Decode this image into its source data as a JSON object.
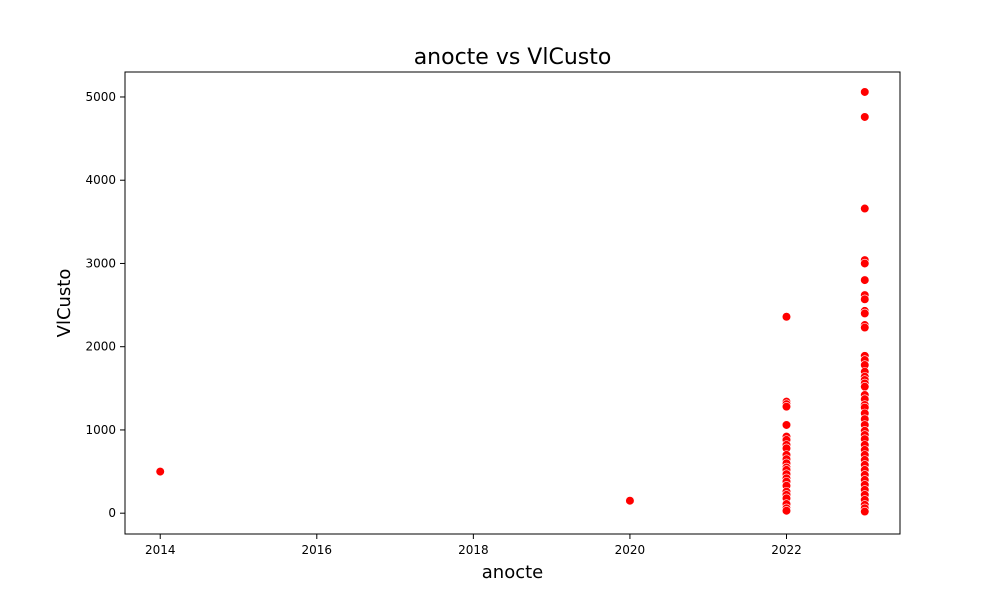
{
  "chart_data": {
    "type": "scatter",
    "title": "anocte vs VlCusto",
    "xlabel": "anocte",
    "ylabel": "VlCusto",
    "xlim": [
      2013.55,
      2023.45
    ],
    "ylim": [
      -250,
      5300
    ],
    "xticks": [
      2014,
      2016,
      2018,
      2020,
      2022
    ],
    "xtick_labels": [
      "2014",
      "2016",
      "2018",
      "2020",
      "2022"
    ],
    "yticks": [
      0,
      1000,
      2000,
      3000,
      4000,
      5000
    ],
    "ytick_labels": [
      "0",
      "1000",
      "2000",
      "3000",
      "4000",
      "5000"
    ],
    "grid": false,
    "marker_color": "#ff0000",
    "series": [
      {
        "x": [
          2014,
          2020,
          2022,
          2022,
          2022,
          2022,
          2022,
          2022,
          2022,
          2022,
          2022,
          2022,
          2022,
          2022,
          2022,
          2022,
          2022,
          2022,
          2022,
          2022,
          2022,
          2022,
          2022,
          2022,
          2022,
          2022,
          2023,
          2023,
          2023,
          2023,
          2023,
          2023,
          2023,
          2023,
          2023,
          2023,
          2023,
          2023,
          2023,
          2023,
          2023,
          2023,
          2023,
          2023,
          2023,
          2023,
          2023,
          2023,
          2023,
          2023,
          2023,
          2023,
          2023,
          2023,
          2023,
          2023,
          2023,
          2023,
          2023,
          2023,
          2023,
          2023,
          2023,
          2023,
          2023,
          2023,
          2023,
          2023,
          2023,
          2023,
          2023
        ],
        "y": [
          500,
          150,
          2360,
          1340,
          1310,
          1280,
          1060,
          920,
          880,
          820,
          780,
          700,
          650,
          600,
          550,
          520,
          470,
          420,
          380,
          330,
          260,
          220,
          180,
          110,
          60,
          30,
          5060,
          4760,
          3660,
          3040,
          3000,
          2800,
          2620,
          2570,
          2430,
          2400,
          2260,
          2230,
          1890,
          1840,
          1780,
          1700,
          1640,
          1600,
          1560,
          1520,
          1420,
          1370,
          1300,
          1270,
          1200,
          1130,
          1060,
          990,
          940,
          890,
          820,
          760,
          700,
          640,
          580,
          520,
          460,
          400,
          340,
          280,
          220,
          160,
          100,
          60,
          20
        ]
      }
    ]
  }
}
